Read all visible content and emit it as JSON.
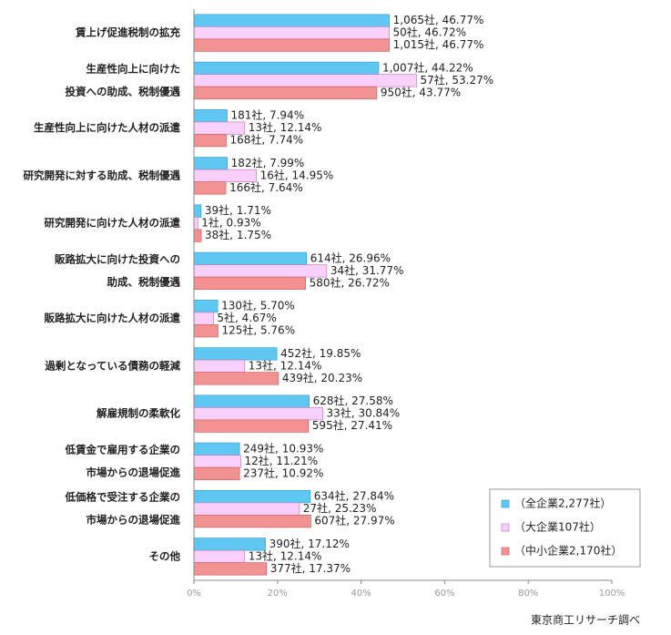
{
  "chart_data": {
    "type": "hbar",
    "categories": [
      [
        "賃上げ促進税制の拡充"
      ],
      [
        "生産性向上に向けた",
        "投資への助成、税制優遇"
      ],
      [
        "生産性向上に向けた人材の派遣"
      ],
      [
        "研究開発に対する助成、税制優遇"
      ],
      [
        "研究開発に向けた人材の派遣"
      ],
      [
        "販路拡大に向けた投資への",
        "助成、税制優遇"
      ],
      [
        "販路拡大に向けた人材の派遣"
      ],
      [
        "過剰となっている債務の軽減"
      ],
      [
        "解雇規制の柔軟化"
      ],
      [
        "低賃金で雇用する企業の",
        "市場からの退場促進"
      ],
      [
        "低価格で受注する企業の",
        "市場からの退場促進"
      ],
      [
        "その他"
      ]
    ],
    "series": [
      {
        "name": "（全企業2,277社）",
        "color": "#5ec8f2",
        "values": [
          46.77,
          44.22,
          7.94,
          7.99,
          1.71,
          26.96,
          5.7,
          19.85,
          27.58,
          10.93,
          27.84,
          17.12
        ],
        "value_labels": [
          "1,065社, 46.77%",
          "1,007社, 44.22%",
          "181社, 7.94%",
          "182社, 7.99%",
          "39社, 1.71%",
          "614社, 26.96%",
          "130社, 5.70%",
          "452社, 19.85%",
          "628社, 27.58%",
          "249社, 10.93%",
          "634社, 27.84%",
          "390社, 17.12%"
        ]
      },
      {
        "name": "（大企業107社）",
        "color": "#f9d0f9",
        "values": [
          46.72,
          53.27,
          12.14,
          14.95,
          0.93,
          31.77,
          4.67,
          12.14,
          30.84,
          11.21,
          25.23,
          12.14
        ],
        "value_labels": [
          "50社, 46.72%",
          "57社, 53.27%",
          "13社, 12.14%",
          "16社, 14.95%",
          "1社, 0.93%",
          "34社, 31.77%",
          "5社, 4.67%",
          "13社, 12.14%",
          "33社, 30.84%",
          "12社, 11.21%",
          "27社, 25.23%",
          "13社, 12.14%"
        ]
      },
      {
        "name": "（中小企業2,170社）",
        "color": "#f29292",
        "values": [
          46.77,
          43.77,
          7.74,
          7.64,
          1.75,
          26.72,
          5.76,
          20.23,
          27.41,
          10.92,
          27.97,
          17.37
        ],
        "value_labels": [
          "1,015社, 46.77%",
          "950社, 43.77%",
          "168社, 7.74%",
          "166社, 7.64%",
          "38社, 1.75%",
          "580社, 26.72%",
          "125社, 5.76%",
          "439社, 20.23%",
          "595社, 27.41%",
          "237社, 10.92%",
          "607社, 27.97%",
          "377社, 17.37%"
        ]
      }
    ],
    "xlim": [
      0,
      100
    ],
    "xticks": [
      {
        "value": 0,
        "label": "0%"
      },
      {
        "value": 20,
        "label": "20%"
      },
      {
        "value": 40,
        "label": "40%"
      },
      {
        "value": 60,
        "label": "60%"
      },
      {
        "value": 80,
        "label": "80%"
      },
      {
        "value": 100,
        "label": "100%"
      }
    ],
    "source": "東京商工リサーチ調べ"
  }
}
